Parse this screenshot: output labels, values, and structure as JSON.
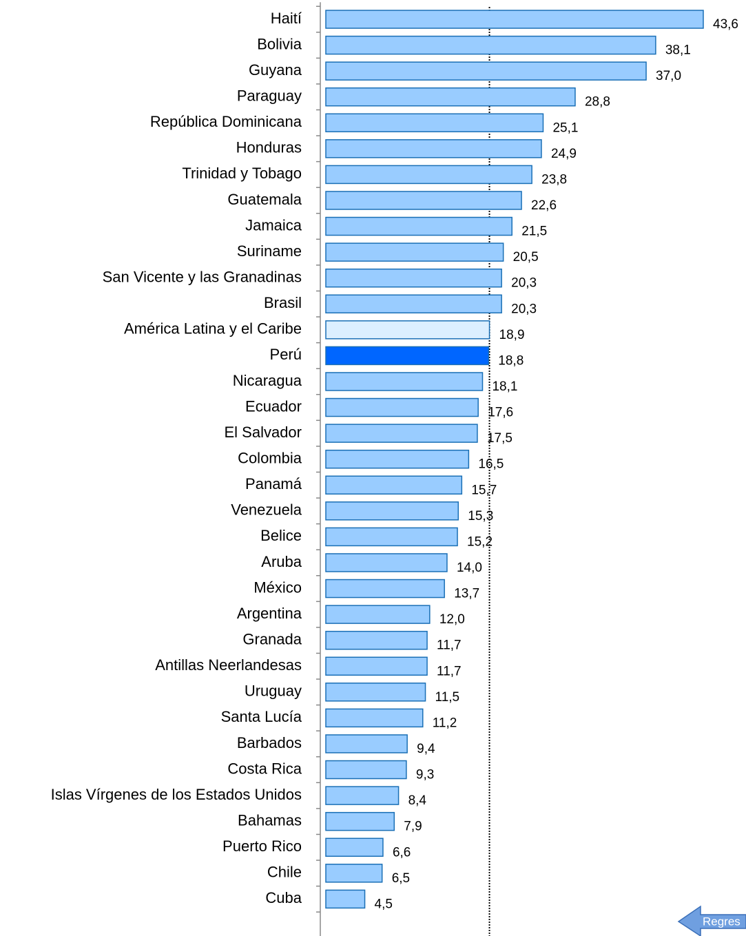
{
  "chart_data": {
    "type": "barh",
    "categories": [
      "Haití",
      "Bolivia",
      "Guyana",
      "Paraguay",
      "República Dominicana",
      "Honduras",
      "Trinidad y Tobago",
      "Guatemala",
      "Jamaica",
      "Suriname",
      "San Vicente y las Granadinas",
      "Brasil",
      "América Latina y el Caribe",
      "Perú",
      "Nicaragua",
      "Ecuador",
      "El Salvador",
      "Colombia",
      "Panamá",
      "Venezuela",
      "Belice",
      "Aruba",
      "México",
      "Argentina",
      "Granada",
      "Antillas Neerlandesas",
      "Uruguay",
      "Santa Lucía",
      "Barbados",
      "Costa Rica",
      "Islas Vírgenes de los Estados Unidos",
      "Bahamas",
      "Puerto Rico",
      "Chile",
      "Cuba"
    ],
    "values": [
      43.6,
      38.1,
      37.0,
      28.8,
      25.1,
      24.9,
      23.8,
      22.6,
      21.5,
      20.5,
      20.3,
      20.3,
      18.9,
      18.8,
      18.1,
      17.6,
      17.5,
      16.5,
      15.7,
      15.3,
      15.2,
      14.0,
      13.7,
      12.0,
      11.7,
      11.7,
      11.5,
      11.2,
      9.4,
      9.3,
      8.4,
      7.9,
      6.6,
      6.5,
      4.5
    ],
    "value_labels": [
      "43,6",
      "38,1",
      "37,0",
      "28,8",
      "25,1",
      "24,9",
      "23,8",
      "22,6",
      "21,5",
      "20,5",
      "20,3",
      "20,3",
      "18,9",
      "18,8",
      "18,1",
      "17,6",
      "17,5",
      "16,5",
      "15,7",
      "15,3",
      "15,2",
      "14,0",
      "13,7",
      "12,0",
      "11,7",
      "11,7",
      "11,5",
      "11,2",
      "9,4",
      "9,3",
      "8,4",
      "7,9",
      "6,6",
      "6,5",
      "4,5"
    ],
    "colors": [
      "#99ccff",
      "#99ccff",
      "#99ccff",
      "#99ccff",
      "#99ccff",
      "#99ccff",
      "#99ccff",
      "#99ccff",
      "#99ccff",
      "#99ccff",
      "#99ccff",
      "#99ccff",
      "#dcefff",
      "#0066ff",
      "#99ccff",
      "#99ccff",
      "#99ccff",
      "#99ccff",
      "#99ccff",
      "#99ccff",
      "#99ccff",
      "#99ccff",
      "#99ccff",
      "#99ccff",
      "#99ccff",
      "#99ccff",
      "#99ccff",
      "#99ccff",
      "#99ccff",
      "#99ccff",
      "#99ccff",
      "#99ccff",
      "#99ccff",
      "#99ccff",
      "#99ccff"
    ],
    "xlim": [
      0,
      43.6
    ]
  },
  "button": {
    "label": "Regres"
  }
}
